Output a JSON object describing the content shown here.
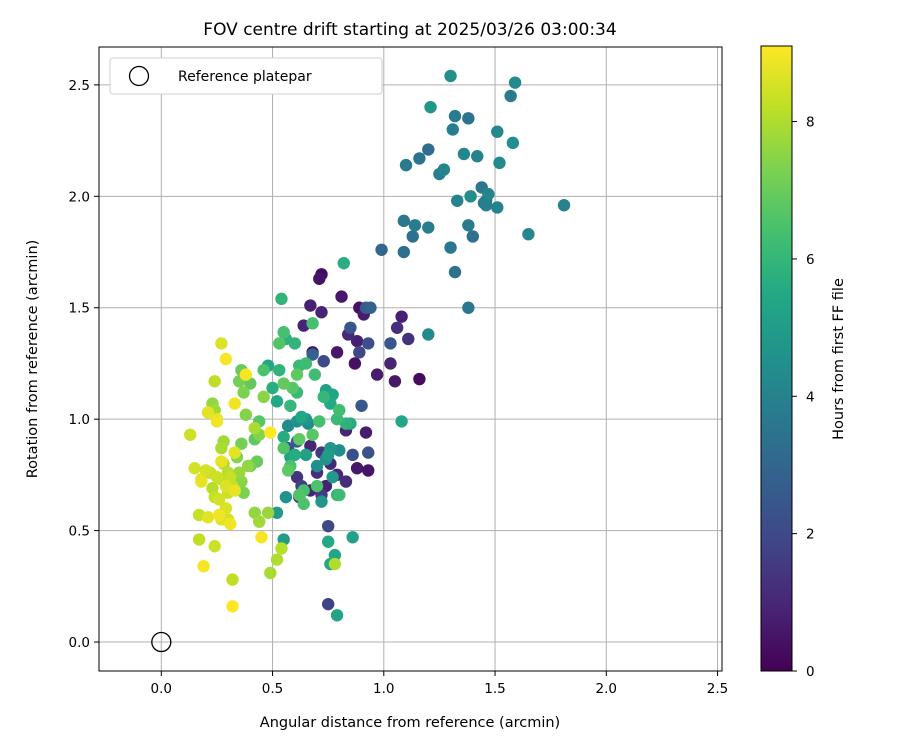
{
  "chart_data": {
    "type": "scatter",
    "title": "FOV centre drift starting at 2025/03/26 03:00:34",
    "xlabel": "Angular distance from reference (arcmin)",
    "ylabel": "Rotation from reference (arcmin)",
    "xlim": [
      -0.28,
      2.52
    ],
    "ylim": [
      -0.13,
      2.67
    ],
    "xticks": [
      0.0,
      0.5,
      1.0,
      1.5,
      2.0,
      2.5
    ],
    "xtick_labels": [
      "0.0",
      "0.5",
      "1.0",
      "1.5",
      "2.0",
      "2.5"
    ],
    "yticks": [
      0.0,
      0.5,
      1.0,
      1.5,
      2.0,
      2.5
    ],
    "ytick_labels": [
      "0.0",
      "0.5",
      "1.0",
      "1.5",
      "2.0",
      "2.5"
    ],
    "grid": true,
    "legend": {
      "placement": "top-left",
      "entries": [
        "Reference platepar"
      ]
    },
    "reference_point": {
      "x": 0.0,
      "y": 0.0
    },
    "colorbar": {
      "label": "Hours from first FF file",
      "colormap": "viridis",
      "range": [
        0,
        9.1
      ],
      "ticks": [
        0,
        2,
        4,
        6,
        8
      ],
      "tick_labels": [
        "0",
        "2",
        "4",
        "6",
        "8"
      ]
    },
    "points": [
      [
        0.72,
        1.65,
        0.3
      ],
      [
        0.71,
        1.63,
        0.5
      ],
      [
        0.67,
        1.51,
        0.8
      ],
      [
        0.72,
        1.48,
        0.9
      ],
      [
        0.81,
        1.55,
        0.6
      ],
      [
        0.89,
        1.5,
        0.4
      ],
      [
        0.91,
        1.47,
        0.7
      ],
      [
        0.64,
        1.42,
        0.9
      ],
      [
        0.84,
        1.38,
        1.0
      ],
      [
        0.88,
        1.35,
        0.8
      ],
      [
        0.68,
        1.3,
        0.5
      ],
      [
        0.79,
        1.3,
        0.6
      ],
      [
        0.87,
        1.25,
        0.4
      ],
      [
        0.97,
        1.2,
        0.7
      ],
      [
        1.03,
        1.25,
        0.9
      ],
      [
        1.05,
        1.17,
        0.6
      ],
      [
        1.06,
        1.41,
        1.2
      ],
      [
        1.08,
        1.46,
        0.8
      ],
      [
        1.16,
        1.18,
        0.3
      ],
      [
        1.11,
        1.36,
        1.3
      ],
      [
        0.83,
        0.95,
        0.9
      ],
      [
        0.92,
        0.94,
        0.7
      ],
      [
        0.93,
        0.77,
        0.5
      ],
      [
        0.88,
        0.78,
        0.6
      ],
      [
        0.74,
        0.7,
        0.8
      ],
      [
        0.79,
        0.75,
        1.0
      ],
      [
        0.7,
        0.76,
        1.2
      ],
      [
        0.61,
        0.74,
        1.3
      ],
      [
        0.72,
        0.85,
        1.5
      ],
      [
        0.76,
        0.8,
        1.1
      ],
      [
        0.67,
        0.88,
        0.9
      ],
      [
        0.62,
        0.65,
        1.4
      ],
      [
        0.72,
        0.66,
        1.6
      ],
      [
        0.83,
        0.72,
        1.2
      ],
      [
        0.67,
        0.68,
        0.9
      ],
      [
        0.75,
        0.17,
        1.8
      ],
      [
        0.75,
        0.52,
        2.0
      ],
      [
        0.63,
        0.7,
        1.7
      ],
      [
        0.86,
        0.84,
        2.2
      ],
      [
        0.93,
        0.85,
        2.3
      ],
      [
        0.9,
        1.06,
        2.5
      ],
      [
        0.89,
        1.3,
        1.9
      ],
      [
        0.85,
        1.41,
        2.4
      ],
      [
        0.92,
        1.5,
        2.6
      ],
      [
        0.93,
        1.34,
        2.2
      ],
      [
        1.03,
        1.34,
        2.4
      ],
      [
        0.94,
        1.5,
        2.8
      ],
      [
        0.99,
        1.76,
        3.0
      ],
      [
        0.73,
        1.26,
        2.1
      ],
      [
        0.57,
        0.87,
        2.3
      ],
      [
        0.61,
        0.9,
        2.6
      ],
      [
        0.68,
        1.29,
        2.8
      ],
      [
        1.09,
        1.75,
        3.3
      ],
      [
        1.09,
        1.89,
        3.6
      ],
      [
        1.13,
        1.82,
        3.4
      ],
      [
        1.14,
        1.87,
        3.8
      ],
      [
        1.2,
        1.86,
        3.9
      ],
      [
        1.2,
        1.38,
        4.3
      ],
      [
        1.16,
        2.17,
        3.5
      ],
      [
        1.2,
        2.21,
        3.2
      ],
      [
        1.1,
        2.14,
        3.7
      ],
      [
        1.25,
        2.1,
        3.9
      ],
      [
        1.27,
        2.12,
        4.1
      ],
      [
        1.3,
        1.77,
        3.6
      ],
      [
        1.32,
        1.66,
        3.4
      ],
      [
        1.33,
        1.98,
        4.0
      ],
      [
        1.31,
        2.3,
        3.9
      ],
      [
        1.32,
        2.36,
        3.8
      ],
      [
        1.36,
        2.19,
        4.2
      ],
      [
        1.38,
        2.35,
        3.5
      ],
      [
        1.4,
        1.82,
        3.3
      ],
      [
        1.38,
        1.87,
        3.7
      ],
      [
        1.38,
        1.5,
        3.6
      ],
      [
        1.39,
        2.0,
        4.4
      ],
      [
        1.44,
        2.04,
        3.6
      ],
      [
        1.42,
        2.18,
        4.0
      ],
      [
        1.45,
        1.97,
        3.8
      ],
      [
        1.46,
        1.98,
        3.5
      ],
      [
        1.47,
        2.01,
        4.1
      ],
      [
        1.46,
        1.96,
        3.9
      ],
      [
        1.51,
        1.95,
        4.0
      ],
      [
        1.51,
        2.29,
        4.2
      ],
      [
        1.52,
        2.15,
        4.3
      ],
      [
        1.57,
        2.45,
        3.7
      ],
      [
        1.58,
        2.24,
        4.5
      ],
      [
        1.59,
        2.51,
        4.3
      ],
      [
        1.65,
        1.83,
        4.2
      ],
      [
        1.81,
        1.96,
        4.0
      ],
      [
        1.3,
        2.54,
        4.5
      ],
      [
        1.21,
        2.4,
        4.8
      ],
      [
        0.56,
        0.65,
        4.6
      ],
      [
        0.52,
        0.58,
        4.9
      ],
      [
        0.55,
        0.46,
        5.0
      ],
      [
        0.57,
        0.97,
        4.4
      ],
      [
        0.61,
        0.99,
        4.6
      ],
      [
        0.65,
        1.0,
        4.8
      ],
      [
        0.66,
        0.98,
        4.3
      ],
      [
        0.7,
        0.79,
        4.5
      ],
      [
        0.74,
        0.82,
        4.6
      ],
      [
        0.8,
        0.86,
        4.4
      ],
      [
        0.76,
        0.87,
        4.7
      ],
      [
        0.72,
        0.63,
        4.8
      ],
      [
        0.75,
        0.84,
        5.0
      ],
      [
        0.77,
        0.74,
        4.9
      ],
      [
        0.86,
        0.47,
        5.2
      ],
      [
        0.76,
        0.35,
        5.3
      ],
      [
        0.78,
        0.39,
        5.4
      ],
      [
        0.79,
        0.12,
        5.3
      ],
      [
        0.75,
        0.45,
        5.5
      ],
      [
        1.08,
        0.99,
        5.4
      ],
      [
        0.85,
        0.98,
        5.6
      ],
      [
        0.77,
        1.11,
        5.3
      ],
      [
        0.74,
        1.13,
        5.1
      ],
      [
        0.76,
        1.07,
        5.5
      ],
      [
        0.65,
        0.84,
        5.2
      ],
      [
        0.63,
        1.01,
        5.4
      ],
      [
        0.6,
        0.84,
        5.6
      ],
      [
        0.58,
        0.83,
        5.2
      ],
      [
        0.55,
        0.92,
        5.6
      ],
      [
        0.52,
        1.08,
        5.5
      ],
      [
        0.48,
        1.24,
        5.4
      ],
      [
        0.5,
        1.14,
        5.7
      ],
      [
        0.53,
        1.22,
        5.9
      ],
      [
        0.56,
        1.36,
        5.8
      ],
      [
        0.6,
        1.34,
        5.9
      ],
      [
        0.58,
        1.06,
        6.0
      ],
      [
        0.62,
        1.24,
        6.1
      ],
      [
        0.65,
        1.25,
        6.2
      ],
      [
        0.69,
        1.2,
        6.3
      ],
      [
        0.68,
        1.43,
        6.4
      ],
      [
        0.8,
        1.04,
        6.3
      ],
      [
        0.79,
        1.0,
        6.1
      ],
      [
        0.73,
        1.1,
        6.0
      ],
      [
        0.54,
        1.54,
        5.9
      ],
      [
        0.82,
        1.7,
        5.7
      ],
      [
        0.8,
        0.66,
        6.2
      ],
      [
        0.7,
        0.7,
        6.5
      ],
      [
        0.64,
        0.68,
        6.4
      ],
      [
        0.62,
        0.66,
        6.6
      ],
      [
        0.64,
        0.62,
        6.5
      ],
      [
        0.71,
        0.99,
        6.4
      ],
      [
        0.68,
        0.93,
        6.7
      ],
      [
        0.62,
        0.91,
        6.8
      ],
      [
        0.58,
        0.79,
        6.5
      ],
      [
        0.55,
        0.87,
        6.6
      ],
      [
        0.57,
        0.77,
        6.8
      ],
      [
        0.59,
        1.14,
        6.7
      ],
      [
        0.55,
        1.16,
        6.9
      ],
      [
        0.61,
        1.2,
        6.8
      ],
      [
        0.53,
        1.34,
        6.6
      ],
      [
        0.55,
        1.39,
        6.4
      ],
      [
        0.46,
        1.22,
        6.5
      ],
      [
        0.44,
        0.99,
        6.7
      ],
      [
        0.42,
        0.91,
        6.8
      ],
      [
        0.4,
        1.16,
        6.9
      ],
      [
        0.4,
        0.79,
        7.1
      ],
      [
        0.43,
        0.81,
        7.0
      ],
      [
        0.36,
        1.22,
        7.0
      ],
      [
        0.35,
        1.17,
        7.2
      ],
      [
        0.37,
        1.12,
        7.3
      ],
      [
        0.38,
        1.02,
        7.4
      ],
      [
        0.36,
        0.89,
        7.2
      ],
      [
        0.34,
        0.83,
        7.4
      ],
      [
        0.36,
        0.72,
        7.5
      ],
      [
        0.37,
        0.67,
        7.3
      ],
      [
        0.42,
        0.58,
        7.6
      ],
      [
        0.44,
        0.54,
        7.8
      ],
      [
        0.49,
        0.31,
        7.9
      ],
      [
        0.52,
        0.37,
        8.0
      ],
      [
        0.54,
        0.42,
        8.1
      ],
      [
        0.32,
        0.28,
        8.2
      ],
      [
        0.23,
        1.07,
        7.6
      ],
      [
        0.24,
        1.04,
        7.8
      ],
      [
        0.28,
        0.9,
        7.8
      ],
      [
        0.27,
        0.87,
        7.9
      ],
      [
        0.28,
        0.8,
        8.0
      ],
      [
        0.3,
        0.76,
        8.1
      ],
      [
        0.27,
        0.73,
        8.2
      ],
      [
        0.25,
        0.74,
        8.4
      ],
      [
        0.22,
        0.76,
        8.3
      ],
      [
        0.23,
        0.69,
        8.1
      ],
      [
        0.24,
        0.65,
        8.3
      ],
      [
        0.26,
        0.64,
        8.5
      ],
      [
        0.29,
        0.7,
        8.6
      ],
      [
        0.3,
        0.67,
        8.4
      ],
      [
        0.3,
        0.55,
        8.5
      ],
      [
        0.32,
        0.7,
        8.2
      ],
      [
        0.33,
        0.68,
        8.8
      ],
      [
        0.31,
        0.53,
        8.9
      ],
      [
        0.27,
        0.55,
        8.7
      ],
      [
        0.24,
        0.43,
        8.4
      ],
      [
        0.17,
        0.57,
        8.3
      ],
      [
        0.17,
        0.46,
        8.2
      ],
      [
        0.18,
        0.73,
        8.6
      ],
      [
        0.15,
        0.78,
        8.5
      ],
      [
        0.13,
        0.93,
        8.4
      ],
      [
        0.2,
        0.77,
        8.5
      ],
      [
        0.21,
        1.03,
        8.7
      ],
      [
        0.25,
        1.0,
        8.8
      ],
      [
        0.24,
        1.17,
        8.2
      ],
      [
        0.27,
        1.34,
        8.6
      ],
      [
        0.29,
        1.27,
        9.0
      ],
      [
        0.33,
        1.07,
        8.9
      ],
      [
        0.38,
        1.2,
        9.0
      ],
      [
        0.49,
        0.94,
        9.1
      ],
      [
        0.45,
        0.47,
        9.0
      ],
      [
        0.32,
        0.16,
        9.1
      ],
      [
        0.19,
        0.34,
        9.0
      ],
      [
        0.26,
        0.57,
        8.9
      ],
      [
        0.33,
        0.85,
        8.7
      ],
      [
        0.27,
        0.81,
        8.8
      ],
      [
        0.29,
        0.6,
        8.6
      ],
      [
        0.25,
        0.99,
        8.9
      ],
      [
        0.21,
        0.56,
        8.7
      ],
      [
        0.18,
        0.72,
        8.8
      ],
      [
        0.31,
        0.74,
        8.3
      ],
      [
        0.35,
        0.76,
        7.7
      ],
      [
        0.42,
        0.96,
        7.9
      ],
      [
        0.46,
        1.1,
        7.5
      ],
      [
        0.39,
        0.79,
        7.6
      ],
      [
        0.44,
        0.93,
        7.4
      ],
      [
        0.48,
        0.58,
        7.7
      ],
      [
        0.78,
        0.35,
        8.0
      ],
      [
        0.79,
        0.66,
        6.0
      ],
      [
        0.83,
        0.98,
        5.8
      ],
      [
        0.61,
        1.12,
        6.1
      ]
    ]
  }
}
